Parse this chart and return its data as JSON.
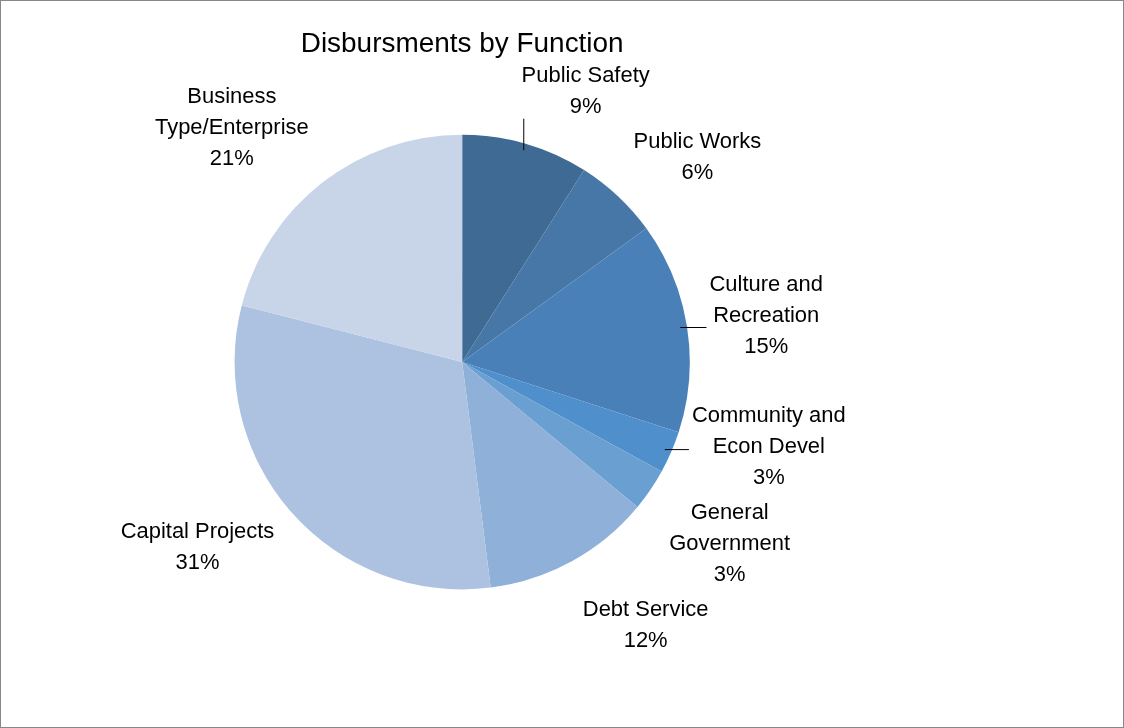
{
  "chart_data": {
    "type": "pie",
    "title": "Disbursments by Function",
    "categories": [
      "Public Safety",
      "Public Works",
      "Culture and Recreation",
      "Community and Econ Devel",
      "General Government",
      "Debt Service",
      "Capital Projects",
      "Business Type/Enterprise"
    ],
    "values": [
      9,
      6,
      15,
      3,
      3,
      12,
      31,
      21
    ],
    "colors": [
      "#3f6a94",
      "#4677a6",
      "#4a80b8",
      "#4f8fcb",
      "#6a9fd1",
      "#8fb0d8",
      "#adc2e0",
      "#c8d5e8"
    ],
    "value_labels": [
      "9%",
      "6%",
      "15%",
      "3%",
      "3%",
      "12%",
      "31%",
      "21%"
    ],
    "legend": false
  }
}
